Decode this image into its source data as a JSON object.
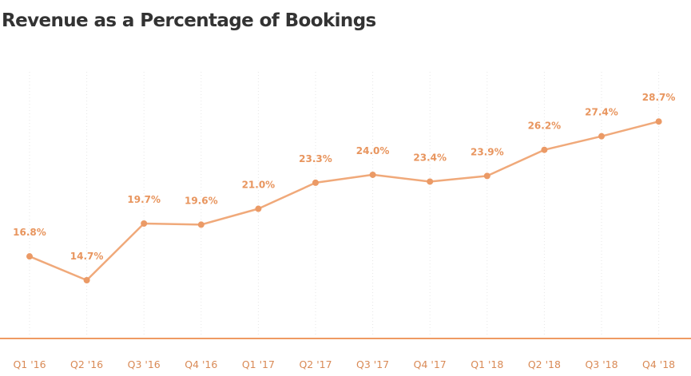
{
  "colors": {
    "line": "#f0a97a",
    "point": "#eb9a66",
    "label": "#e8955e",
    "axis": "#ef9a63",
    "tick_text": "#d98a56",
    "grid": "#e6e6e6",
    "title": "#333333"
  },
  "chart_data": {
    "type": "line",
    "title": "Revenue as a Percentage of Bookings",
    "xlabel": "",
    "ylabel": "",
    "categories": [
      "Q1 '16",
      "Q2 '16",
      "Q3 '16",
      "Q4 '16",
      "Q1 '17",
      "Q2 '17",
      "Q3 '17",
      "Q4 '17",
      "Q1 '18",
      "Q2 '18",
      "Q3 '18",
      "Q4 '18"
    ],
    "series": [
      {
        "values": [
          16.8,
          14.7,
          19.7,
          19.6,
          21.0,
          23.3,
          24.0,
          23.4,
          23.9,
          26.2,
          27.4,
          28.7
        ],
        "labels": [
          "16.8%",
          "14.7%",
          "19.7%",
          "19.6%",
          "21.0%",
          "23.3%",
          "24.0%",
          "23.4%",
          "23.9%",
          "26.2%",
          "27.4%",
          "28.7%"
        ]
      }
    ],
    "grid": "vertical dotted",
    "legend": "none"
  }
}
